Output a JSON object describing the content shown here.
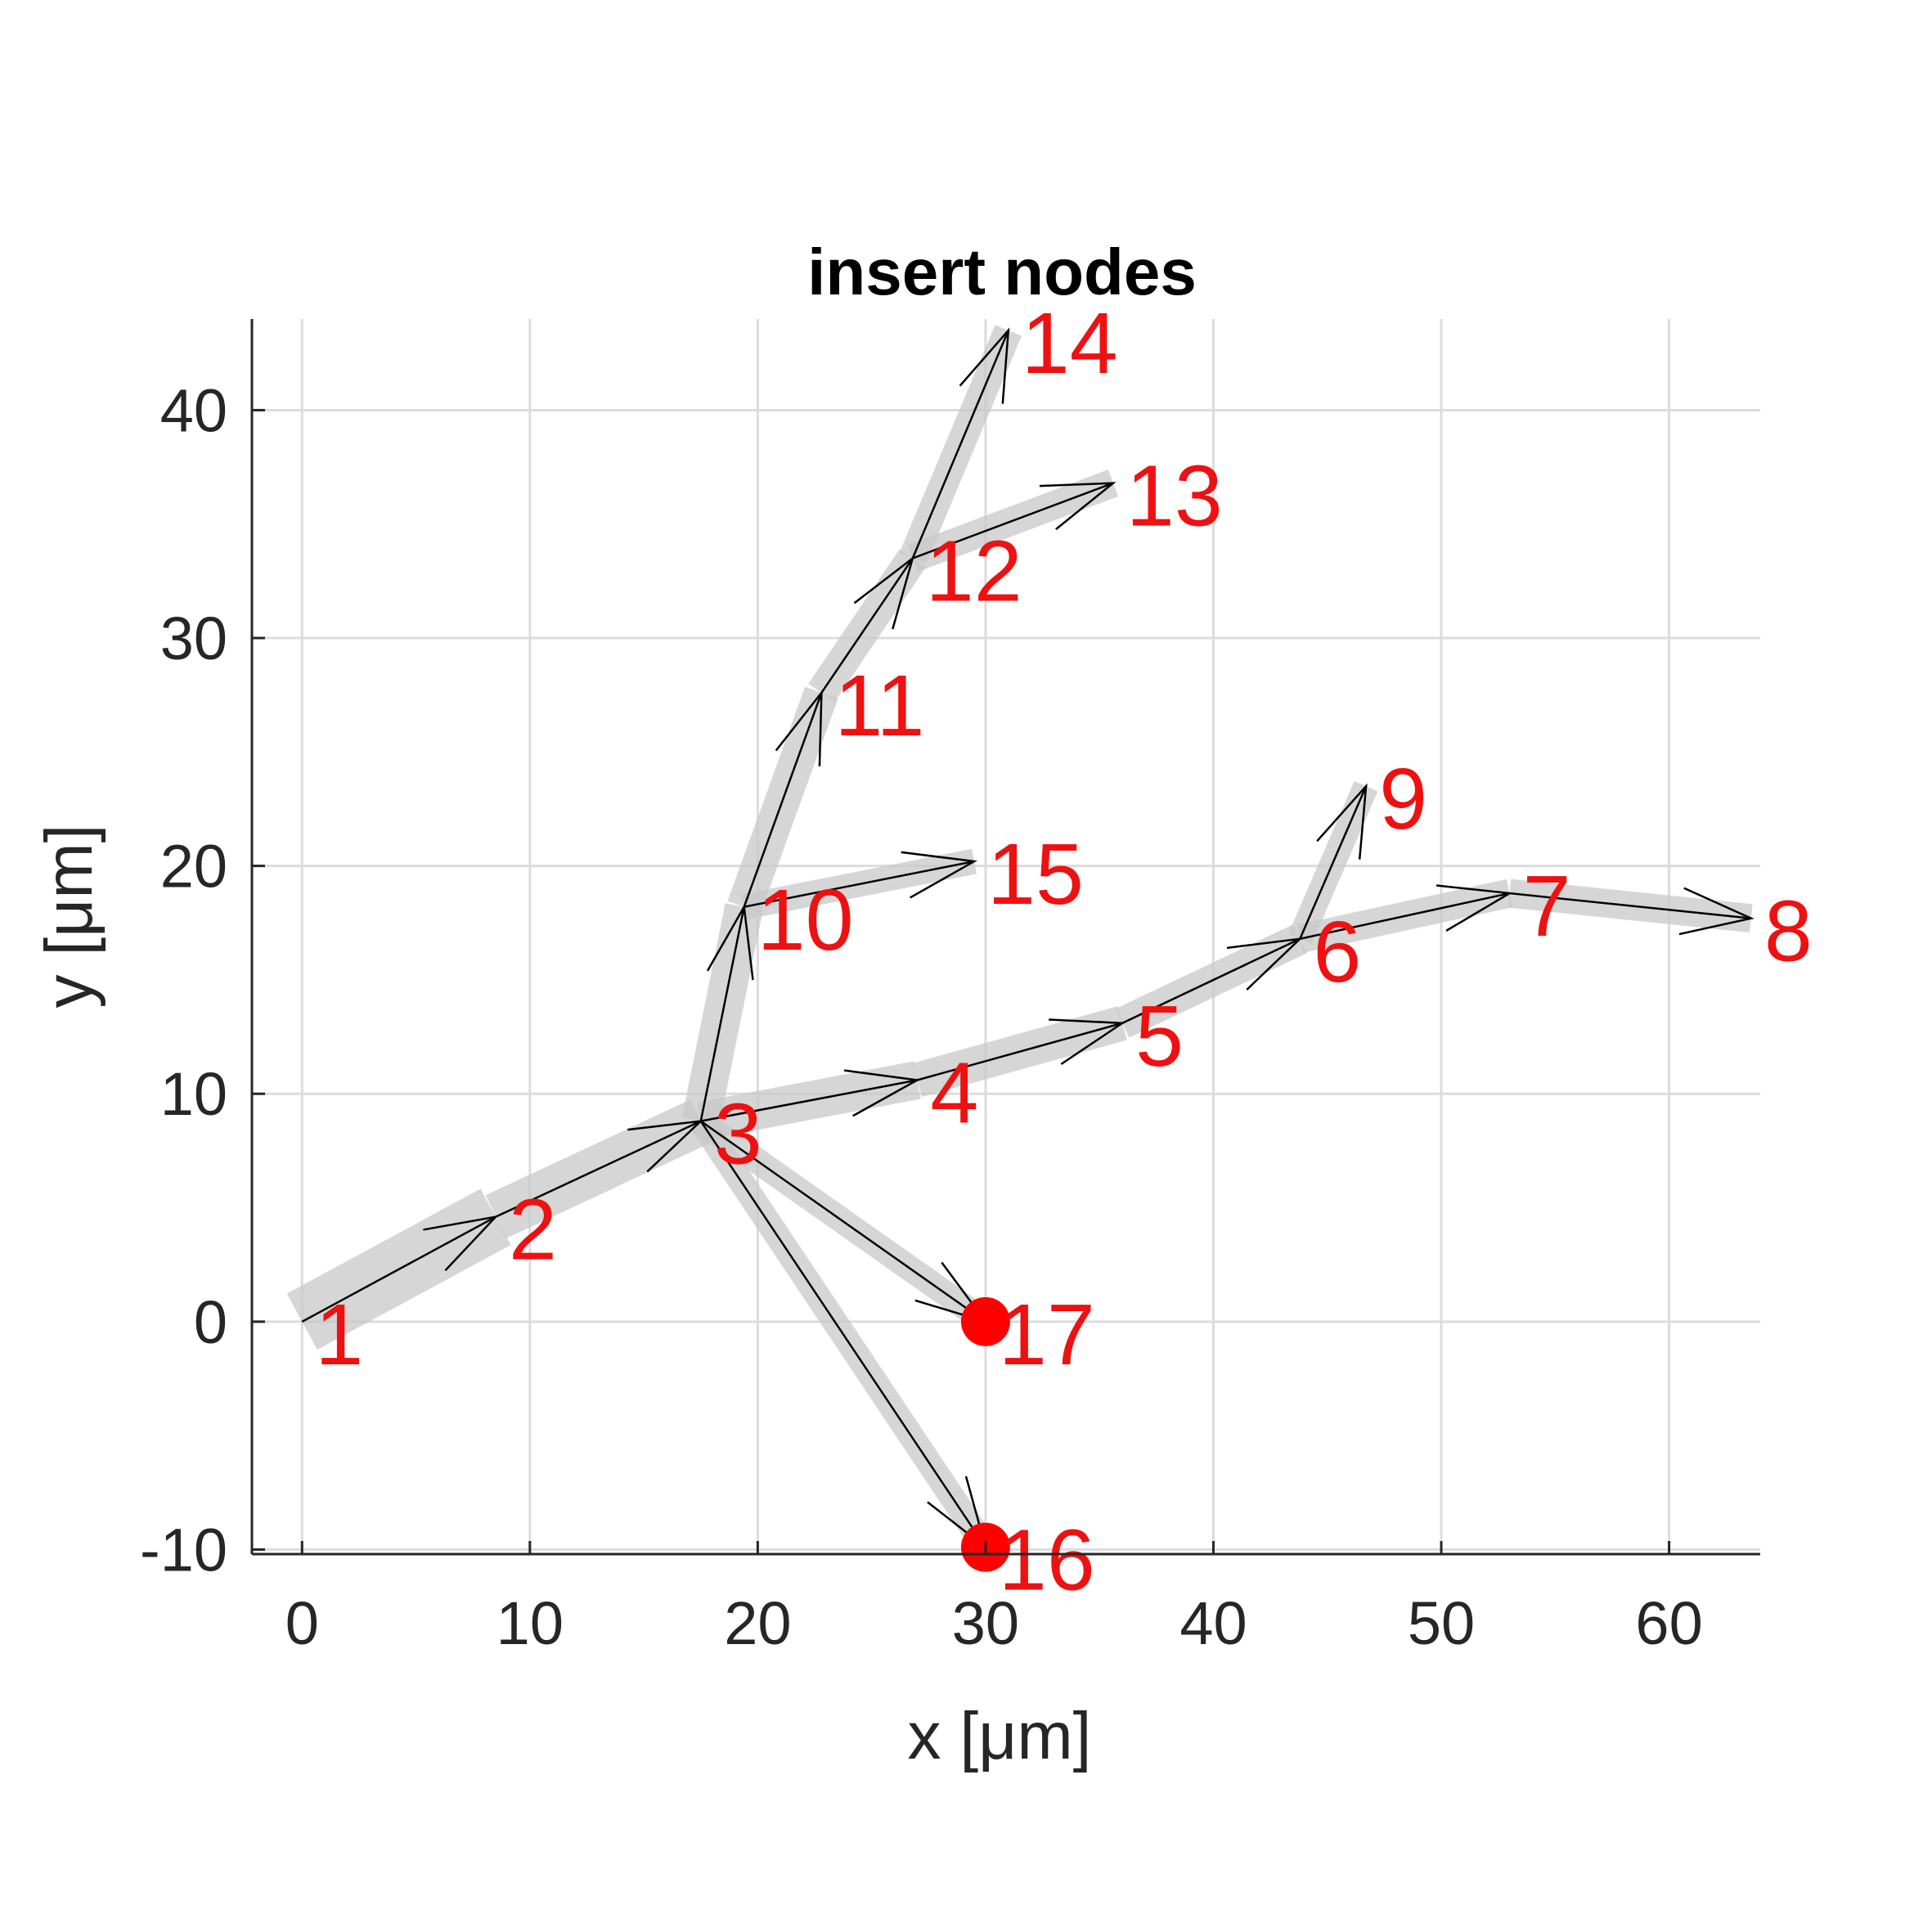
{
  "chart_data": {
    "type": "tree-graph",
    "title": "insert nodes",
    "xlabel": "x [μm]",
    "ylabel": "y [μm]",
    "xlim": [
      -2.2,
      64
    ],
    "ylim": [
      -10.2,
      44
    ],
    "xticks": [
      0,
      10,
      20,
      30,
      40,
      50,
      60
    ],
    "yticks": [
      -10,
      0,
      10,
      20,
      30,
      40
    ],
    "grid": true,
    "nodes": [
      {
        "id": "1",
        "x": 0,
        "y": 0
      },
      {
        "id": "2",
        "x": 8.5,
        "y": 4.6
      },
      {
        "id": "3",
        "x": 17.5,
        "y": 8.8
      },
      {
        "id": "4",
        "x": 27,
        "y": 10.6
      },
      {
        "id": "5",
        "x": 36,
        "y": 13.1
      },
      {
        "id": "6",
        "x": 43.8,
        "y": 16.8
      },
      {
        "id": "7",
        "x": 53,
        "y": 18.8
      },
      {
        "id": "8",
        "x": 63.6,
        "y": 17.7
      },
      {
        "id": "9",
        "x": 46.7,
        "y": 23.5
      },
      {
        "id": "10",
        "x": 19.4,
        "y": 18.2
      },
      {
        "id": "11",
        "x": 22.8,
        "y": 27.6
      },
      {
        "id": "12",
        "x": 26.8,
        "y": 33.5
      },
      {
        "id": "13",
        "x": 35.6,
        "y": 36.8
      },
      {
        "id": "14",
        "x": 31,
        "y": 43.5
      },
      {
        "id": "15",
        "x": 29.5,
        "y": 20.2
      },
      {
        "id": "16",
        "x": 30,
        "y": -9.9
      },
      {
        "id": "17",
        "x": 30,
        "y": 0
      }
    ],
    "edges": [
      {
        "from": "1",
        "to": "2",
        "width": 2.0
      },
      {
        "from": "2",
        "to": "3",
        "width": 1.5
      },
      {
        "from": "3",
        "to": "4",
        "width": 1.2
      },
      {
        "from": "4",
        "to": "5",
        "width": 1.1
      },
      {
        "from": "5",
        "to": "6",
        "width": 1.0
      },
      {
        "from": "6",
        "to": "7",
        "width": 0.9
      },
      {
        "from": "7",
        "to": "8",
        "width": 0.9
      },
      {
        "from": "6",
        "to": "9",
        "width": 0.8
      },
      {
        "from": "3",
        "to": "10",
        "width": 1.2
      },
      {
        "from": "10",
        "to": "11",
        "width": 1.1
      },
      {
        "from": "11",
        "to": "12",
        "width": 1.0
      },
      {
        "from": "12",
        "to": "13",
        "width": 0.9
      },
      {
        "from": "12",
        "to": "14",
        "width": 0.9
      },
      {
        "from": "10",
        "to": "15",
        "width": 0.8
      },
      {
        "from": "3",
        "to": "16",
        "width": 0.8
      },
      {
        "from": "3",
        "to": "17",
        "width": 0.8
      }
    ],
    "inserted_nodes": [
      "16",
      "17"
    ],
    "colors": {
      "label": "#ee1111",
      "marker": "#ff0000",
      "segment": "#c8c8c8",
      "arrow": "#000000",
      "grid": "#dcdcdc",
      "axis": "#262626"
    }
  }
}
